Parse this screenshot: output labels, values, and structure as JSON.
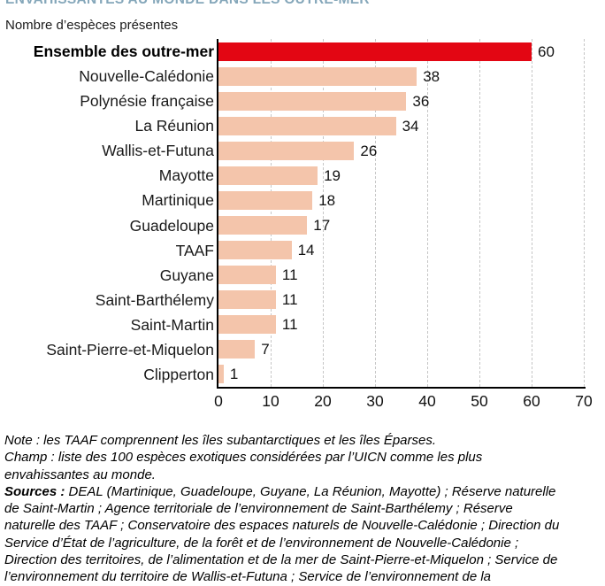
{
  "header": {
    "title_clipped": "ENVAHISSANTES AU MONDE DANS LES OUTRE-MER",
    "subtitle": "Nombre d’espèces présentes"
  },
  "colors": {
    "title_blue": "#85a7ba",
    "highlight_bar": "#e30613",
    "bar": "#f4c5ab",
    "grid": "#c6c6c6",
    "axis": "#000000"
  },
  "chart_data": {
    "type": "bar",
    "orientation": "horizontal",
    "title": "Nombre d’espèces présentes",
    "categories": [
      "Ensemble des outre-mer",
      "Nouvelle-Calédonie",
      "Polynésie française",
      "La Réunion",
      "Wallis-et-Futuna",
      "Mayotte",
      "Martinique",
      "Guadeloupe",
      "TAAF",
      "Guyane",
      "Saint-Barthélemy",
      "Saint-Martin",
      "Saint-Pierre-et-Miquelon",
      "Clipperton"
    ],
    "values": [
      60,
      38,
      36,
      34,
      26,
      19,
      18,
      17,
      14,
      11,
      11,
      11,
      7,
      1
    ],
    "highlight_index": 0,
    "xlim": [
      0,
      70
    ],
    "x_ticks": [
      0,
      10,
      20,
      30,
      40,
      50,
      60,
      70
    ],
    "grid": "vertical-dashed",
    "legend": "none",
    "value_labels": true
  },
  "notes": {
    "note": "Note : les TAAF comprennent les îles subantarctiques et les îles Éparses.",
    "champ": "Champ : liste des 100 espèces exotiques considérées par l’UICN comme les plus envahissantes au monde.",
    "sources_label": "Sources :",
    "sources_text": " DEAL (Martinique, Guadeloupe, Guyane, La Réunion, Mayotte) ; Réserve naturelle de Saint-Martin ; Agence territoriale de l’environnement de Saint-Barthélemy ; Réserve naturelle des TAAF ; Conservatoire des espaces naturels de Nouvelle-Calédonie ; Direction du Service d’État de l’agriculture, de la forêt et de l’environnement de Nouvelle-Calédonie ; Direction des territoires, de l’alimentation et de la mer de Saint-Pierre-et-Miquelon ; Service de l’environnement du territoire de Wallis-et-Futuna ; Service de l’environnement de la"
  }
}
